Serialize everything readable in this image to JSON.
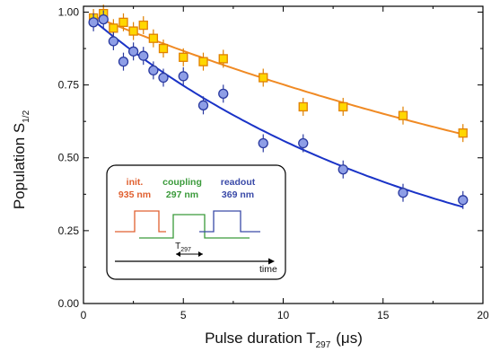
{
  "chart_data": {
    "type": "scatter",
    "xlabel": {
      "main": "Pulse duration T",
      "sub": "297",
      "unit": "(μs)"
    },
    "ylabel": {
      "main": "Population S",
      "sub": "1/2"
    },
    "xlim": [
      0,
      20
    ],
    "ylim": [
      0.0,
      1.02
    ],
    "x_ticks": [
      0,
      5,
      10,
      15,
      20
    ],
    "x_tick_labels": [
      "0",
      "5",
      "10",
      "15",
      "20"
    ],
    "y_ticks": [
      0.0,
      0.25,
      0.5,
      0.75,
      1.0
    ],
    "y_tick_labels": [
      "0.00",
      "0.25",
      "0.50",
      "0.75",
      "1.00"
    ],
    "grid": false,
    "series": [
      {
        "marker": "square",
        "color": "#ffd700",
        "edge_color": "#e08000",
        "fit_color": "#f08a24",
        "x": [
          0.5,
          1,
          1.5,
          2,
          2.5,
          3,
          3.5,
          4,
          5,
          6,
          7,
          9,
          11,
          13,
          16,
          19
        ],
        "y": [
          0.98,
          0.995,
          0.945,
          0.965,
          0.935,
          0.955,
          0.91,
          0.875,
          0.845,
          0.83,
          0.84,
          0.775,
          0.675,
          0.675,
          0.645,
          0.585
        ],
        "fit": {
          "model": "exp_decay",
          "amplitude": 1.0,
          "tau": 35.0
        }
      },
      {
        "marker": "circle",
        "color": "#8e9ee6",
        "edge_color": "#2a3aa0",
        "fit_color": "#1a33c7",
        "x": [
          0.5,
          1,
          1.5,
          2,
          2.5,
          3,
          3.5,
          4,
          5,
          6,
          7,
          9,
          11,
          13,
          16,
          19
        ],
        "y": [
          0.965,
          0.975,
          0.9,
          0.83,
          0.865,
          0.85,
          0.8,
          0.775,
          0.78,
          0.68,
          0.72,
          0.55,
          0.55,
          0.46,
          0.38,
          0.355
        ],
        "fit": {
          "model": "exp_decay",
          "amplitude": 1.0,
          "tau": 17.2
        }
      }
    ],
    "inset": {
      "pulses": [
        {
          "name": "init.",
          "wavelength": "935 nm",
          "color": "#e06030"
        },
        {
          "name": "coupling",
          "wavelength": "297 nm",
          "color": "#3a9a3a"
        },
        {
          "name": "readout",
          "wavelength": "369 nm",
          "color": "#3a4aa8"
        }
      ],
      "duration_label": {
        "main": "T",
        "sub": "297"
      },
      "time_label": "time"
    }
  }
}
